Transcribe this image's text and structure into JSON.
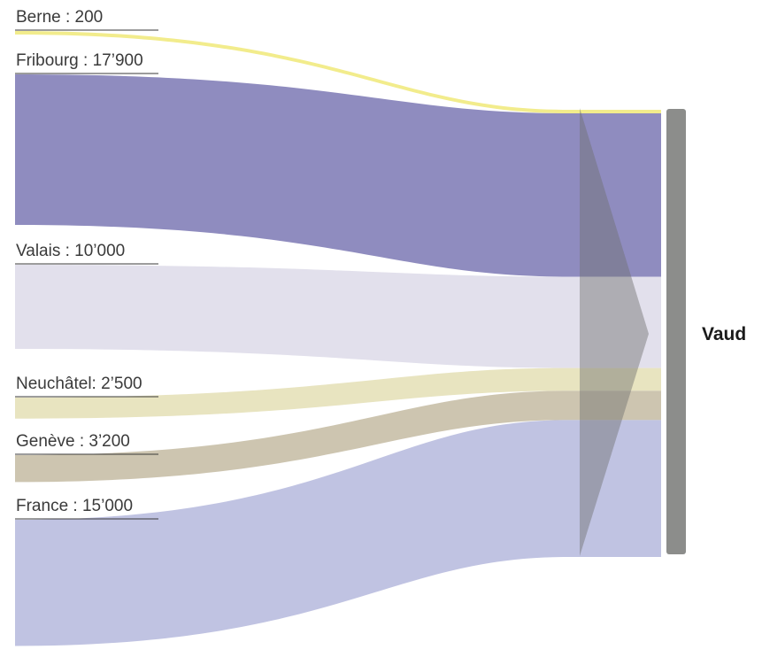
{
  "chart_data": {
    "type": "sankey",
    "target": "Vaud",
    "flows": [
      {
        "label": "Berne : 200",
        "source": "Berne",
        "value": 200,
        "color": "#f2ec8c"
      },
      {
        "label": "Fribourg : 17’900",
        "source": "Fribourg",
        "value": 17900,
        "color": "#8f8cbf"
      },
      {
        "label": "Valais : 10’000",
        "source": "Valais",
        "value": 10000,
        "color": "#e2e0ec"
      },
      {
        "label": "Neuchâtel: 2’500",
        "source": "Neuchâtel",
        "value": 2500,
        "color": "#e8e4c0"
      },
      {
        "label": "Genève : 3’200",
        "source": "Genève",
        "value": 3200,
        "color": "#cdc5b0"
      },
      {
        "label": "France : 15’000",
        "source": "France",
        "value": 15000,
        "color": "#c0c3e2"
      }
    ],
    "colors": {
      "target_bar": "#8c8d8b",
      "label_underline": "#3a3a3a",
      "overlay_triangle": "#6e6e6e"
    }
  }
}
